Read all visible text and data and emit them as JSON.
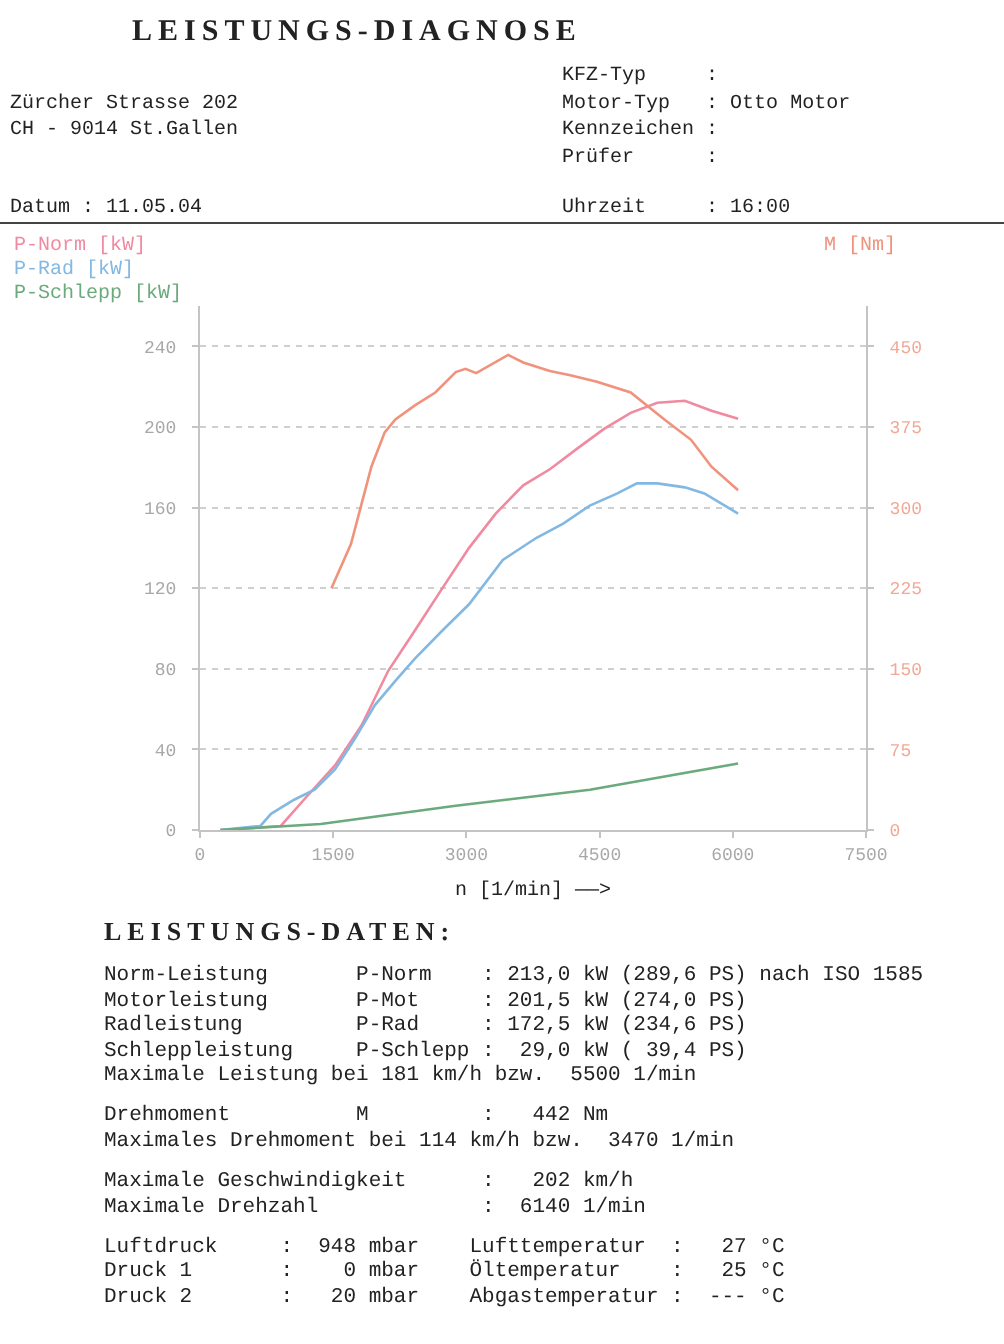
{
  "chart_data": {
    "type": "line",
    "title": "LEISTUNGS-DIAGNOSE",
    "xlabel": "n [1/min] ——>",
    "xlim": [
      0,
      7500
    ],
    "xticks": [
      0,
      1500,
      3000,
      4500,
      6000,
      7500
    ],
    "ylim": [
      0,
      260
    ],
    "yticks": [
      0,
      40,
      80,
      120,
      160,
      200,
      240
    ],
    "y2lim": [
      0,
      487.5
    ],
    "y2ticks": [
      0,
      75,
      150,
      225,
      300,
      375,
      450
    ],
    "grid": "y",
    "legend": "top left",
    "series": [
      {
        "name": "P-Norm [kW]",
        "color": "#f08aa0",
        "x": [
          230,
          910,
          1210,
          1520,
          1820,
          2120,
          2420,
          2730,
          3030,
          3330,
          3640,
          3940,
          4240,
          4550,
          4850,
          5150,
          5460,
          5760,
          6060
        ],
        "values": [
          0,
          2,
          17,
          32,
          52,
          79,
          99,
          120,
          140,
          157,
          171,
          179,
          189,
          199,
          207,
          212,
          213,
          208,
          204
        ]
      },
      {
        "name": "P-Rad [kW]",
        "color": "#82b8e2",
        "x": [
          230,
          680,
          800,
          1060,
          1290,
          1520,
          1740,
          1970,
          2200,
          2420,
          2730,
          3030,
          3410,
          3790,
          4090,
          4390,
          4700,
          4920,
          5150,
          5460,
          5680,
          6060
        ],
        "values": [
          0,
          2,
          8,
          15,
          20,
          30,
          45,
          62,
          74,
          85,
          99,
          112,
          134,
          145,
          152,
          161,
          167,
          172,
          172,
          170,
          167,
          157
        ]
      },
      {
        "name": "P-Schlepp [kW]",
        "color": "#6aaa7c",
        "x": [
          230,
          1360,
          2880,
          4390,
          6060
        ],
        "values": [
          0,
          3,
          12,
          20,
          33
        ]
      },
      {
        "name": "M [Nm]",
        "color": "#f0927c",
        "axis": "y2",
        "x": [
          1480,
          1700,
          1930,
          2080,
          2200,
          2420,
          2650,
          2880,
          2990,
          3110,
          3470,
          3640,
          3940,
          4170,
          4470,
          4850,
          5230,
          5530,
          5760,
          6060
        ],
        "values": [
          225,
          266,
          338,
          370,
          382,
          395,
          407,
          426,
          429,
          425,
          442,
          435,
          427,
          423,
          417,
          407,
          382,
          363,
          338,
          316
        ]
      }
    ],
    "annotations": [
      "                                              KFZ-Typ     :",
      "Zürcher Strasse 202                           Motor-Typ   : Otto Motor",
      "CH - 9014 St.Gallen                           Kennzeichen :",
      "                                              Prüfer      :",
      "Datum : 11.05.04                              Uhrzeit     : 16:00",
      "LEISTUNGS-DATEN:",
      "Norm-Leistung       P-Norm    : 213,0 kW (289,6 PS) nach ISO 1585",
      "Motorleistung       P-Mot     : 201,5 kW (274,0 PS)",
      "Radleistung         P-Rad     : 172,5 kW (234,6 PS)",
      "Schleppleistung     P-Schlepp :  29,0 kW ( 39,4 PS)",
      "Maximale Leistung bei 181 km/h bzw.  5500 1/min",
      "Drehmoment          M         :   442 Nm",
      "Maximales Drehmoment bei 114 km/h bzw.  3470 1/min",
      "Maximale Geschwindigkeit      :   202 km/h",
      "Maximale Drehzahl             :  6140 1/min",
      "Luftdruck     :  948 mbar    Lufttemperatur  :   27 °C",
      "Druck 1       :    0 mbar    Öltemperatur    :   25 °C",
      "Druck 2       :   20 mbar    Abgastemperatur :  --- °C"
    ]
  }
}
